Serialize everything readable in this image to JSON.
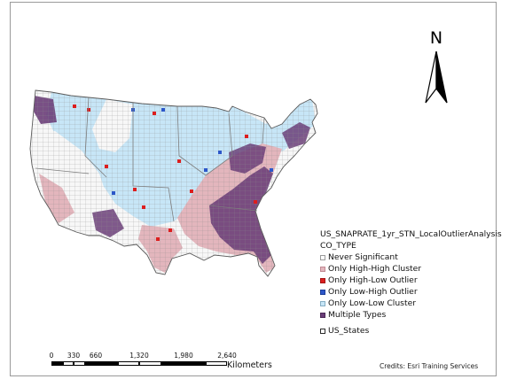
{
  "north_arrow": {
    "letter": "N"
  },
  "legend": {
    "layer_title": "US_SNAPRATE_1yr_STN_LocalOutlierAnalysis",
    "field_name": "CO_TYPE",
    "items": [
      {
        "label": "Never Significant",
        "fill": "#ffffff",
        "border": "#9a9a9a"
      },
      {
        "label": "Only High-High Cluster",
        "fill": "#e3b6bd",
        "border": "#c08a93"
      },
      {
        "label": "Only High-Low Outlier",
        "fill": "#dc1e1e",
        "border": "#a31414"
      },
      {
        "label": "Only Low-High Outlier",
        "fill": "#2c57c9",
        "border": "#1d3f99"
      },
      {
        "label": "Only Low-Low Cluster",
        "fill": "#c7e6f7",
        "border": "#86aec4"
      },
      {
        "label": "Multiple Types",
        "fill": "#6a3d78",
        "border": "#4a2855"
      }
    ],
    "boundary_layer": {
      "label": "US_States",
      "fill": "#ffffff",
      "border": "#2b2b2b"
    }
  },
  "scale_bar": {
    "ticks": [
      "0",
      "330",
      "660",
      "1,320",
      "1,980",
      "2,640"
    ],
    "values": [
      0,
      330,
      660,
      1320,
      1980,
      2640
    ],
    "unit": "Kilometers"
  },
  "credits": "Credits: Esri Training Services",
  "colors": {
    "never": "#f7f7f7",
    "high_high": "#e3b6bd",
    "low_low": "#c7e6f7",
    "multiple": "#6a3d78",
    "high_low": "#dc1e1e",
    "low_high": "#2c57c9",
    "boundary": "#7d7d7d"
  }
}
